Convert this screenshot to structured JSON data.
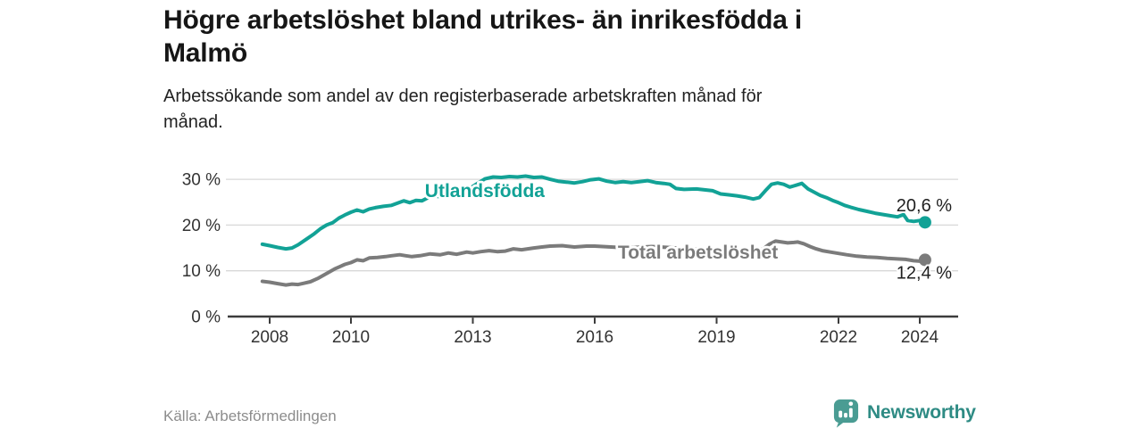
{
  "header": {
    "title_line1": "Högre arbetslöshet bland utrikes- än inrikesfödda i",
    "title_line2": "Malmö",
    "subtitle_line1": "Arbetssökande som andel av den registerbaserade arbetskraften månad för",
    "subtitle_line2": "månad."
  },
  "footer": {
    "source": "Källa: Arbetsförmedlingen",
    "logo_text": "Newsworthy"
  },
  "colors": {
    "foreign_born": "#12a296",
    "total": "#7b7b7b",
    "grid": "#d8d8d8",
    "axis": "#3c3c3c",
    "tick_text": "#333333",
    "value_text": "#1f1f1f",
    "logo_icon": "#4a9c93",
    "logo_text": "#2e8b84"
  },
  "chart_data": {
    "type": "line",
    "unit": "%",
    "x_axis": {
      "ticks": [
        2008,
        2010,
        2013,
        2016,
        2019,
        2022,
        2024
      ],
      "range": [
        2007.82,
        2024.95
      ],
      "grid": false
    },
    "y_axis": {
      "ticks": [
        0,
        10,
        20,
        30
      ],
      "tick_labels": [
        "0 %",
        "10 %",
        "20 %",
        "30 %"
      ],
      "range": [
        0,
        31.8
      ],
      "grid": true
    },
    "legend_position": "inline-labels",
    "series": [
      {
        "name": "Utlandsfödda",
        "color_key": "foreign_born",
        "inline_label": {
          "text": "Utlandsfödda",
          "x_year": 2011.82,
          "value": 26.1
        },
        "end_label": "20,6 %",
        "end_value": 20.6,
        "points": [
          [
            2007.82,
            15.8
          ],
          [
            2008.0,
            15.5
          ],
          [
            2008.2,
            15.1
          ],
          [
            2008.4,
            14.8
          ],
          [
            2008.55,
            15.0
          ],
          [
            2008.7,
            15.7
          ],
          [
            2008.9,
            16.9
          ],
          [
            2009.1,
            18.1
          ],
          [
            2009.25,
            19.2
          ],
          [
            2009.4,
            20.0
          ],
          [
            2009.55,
            20.5
          ],
          [
            2009.7,
            21.5
          ],
          [
            2009.85,
            22.2
          ],
          [
            2010.0,
            22.8
          ],
          [
            2010.15,
            23.3
          ],
          [
            2010.3,
            22.9
          ],
          [
            2010.45,
            23.5
          ],
          [
            2010.6,
            23.8
          ],
          [
            2010.8,
            24.1
          ],
          [
            2011.0,
            24.3
          ],
          [
            2011.15,
            24.8
          ],
          [
            2011.3,
            25.3
          ],
          [
            2011.45,
            24.9
          ],
          [
            2011.6,
            25.4
          ],
          [
            2011.75,
            25.3
          ],
          [
            2011.9,
            26.0
          ],
          [
            2012.05,
            26.4
          ],
          [
            2012.2,
            26.2
          ],
          [
            2012.4,
            26.7
          ],
          [
            2012.55,
            26.4
          ],
          [
            2012.7,
            27.2
          ],
          [
            2012.9,
            27.9
          ],
          [
            2013.1,
            29.0
          ],
          [
            2013.3,
            30.1
          ],
          [
            2013.5,
            30.5
          ],
          [
            2013.7,
            30.4
          ],
          [
            2013.9,
            30.6
          ],
          [
            2014.1,
            30.5
          ],
          [
            2014.3,
            30.7
          ],
          [
            2014.5,
            30.4
          ],
          [
            2014.7,
            30.5
          ],
          [
            2014.9,
            30.0
          ],
          [
            2015.1,
            29.6
          ],
          [
            2015.3,
            29.4
          ],
          [
            2015.5,
            29.2
          ],
          [
            2015.7,
            29.5
          ],
          [
            2015.9,
            29.9
          ],
          [
            2016.1,
            30.1
          ],
          [
            2016.3,
            29.6
          ],
          [
            2016.5,
            29.3
          ],
          [
            2016.7,
            29.5
          ],
          [
            2016.9,
            29.3
          ],
          [
            2017.1,
            29.5
          ],
          [
            2017.3,
            29.7
          ],
          [
            2017.5,
            29.3
          ],
          [
            2017.7,
            29.1
          ],
          [
            2017.85,
            28.9
          ],
          [
            2018.0,
            28.0
          ],
          [
            2018.2,
            27.8
          ],
          [
            2018.5,
            27.9
          ],
          [
            2018.7,
            27.7
          ],
          [
            2018.9,
            27.5
          ],
          [
            2019.1,
            26.8
          ],
          [
            2019.3,
            26.6
          ],
          [
            2019.5,
            26.4
          ],
          [
            2019.7,
            26.1
          ],
          [
            2019.9,
            25.7
          ],
          [
            2020.05,
            26.0
          ],
          [
            2020.2,
            27.5
          ],
          [
            2020.35,
            28.9
          ],
          [
            2020.5,
            29.2
          ],
          [
            2020.65,
            28.9
          ],
          [
            2020.8,
            28.3
          ],
          [
            2020.95,
            28.7
          ],
          [
            2021.1,
            29.1
          ],
          [
            2021.25,
            27.9
          ],
          [
            2021.4,
            27.2
          ],
          [
            2021.55,
            26.5
          ],
          [
            2021.7,
            26.0
          ],
          [
            2021.85,
            25.4
          ],
          [
            2022.0,
            24.9
          ],
          [
            2022.15,
            24.3
          ],
          [
            2022.3,
            23.9
          ],
          [
            2022.5,
            23.4
          ],
          [
            2022.7,
            23.0
          ],
          [
            2022.9,
            22.6
          ],
          [
            2023.1,
            22.3
          ],
          [
            2023.3,
            22.0
          ],
          [
            2023.45,
            21.8
          ],
          [
            2023.6,
            22.3
          ],
          [
            2023.7,
            21.0
          ],
          [
            2023.85,
            20.8
          ],
          [
            2024.0,
            21.0
          ],
          [
            2024.13,
            20.6
          ]
        ]
      },
      {
        "name": "Total arbetslöshet",
        "color_key": "total",
        "inline_label": {
          "text": "Total arbetslöshet",
          "x_year": 2016.57,
          "value": 12.65
        },
        "end_label": "12,4 %",
        "end_value": 12.4,
        "points": [
          [
            2007.82,
            7.7
          ],
          [
            2008.0,
            7.5
          ],
          [
            2008.2,
            7.2
          ],
          [
            2008.4,
            6.9
          ],
          [
            2008.55,
            7.1
          ],
          [
            2008.7,
            7.0
          ],
          [
            2008.85,
            7.3
          ],
          [
            2009.0,
            7.6
          ],
          [
            2009.2,
            8.4
          ],
          [
            2009.4,
            9.4
          ],
          [
            2009.6,
            10.4
          ],
          [
            2009.85,
            11.4
          ],
          [
            2010.0,
            11.8
          ],
          [
            2010.15,
            12.4
          ],
          [
            2010.3,
            12.2
          ],
          [
            2010.45,
            12.8
          ],
          [
            2010.65,
            12.9
          ],
          [
            2010.85,
            13.1
          ],
          [
            2011.0,
            13.3
          ],
          [
            2011.2,
            13.5
          ],
          [
            2011.35,
            13.3
          ],
          [
            2011.5,
            13.1
          ],
          [
            2011.7,
            13.3
          ],
          [
            2011.95,
            13.7
          ],
          [
            2012.2,
            13.5
          ],
          [
            2012.4,
            13.9
          ],
          [
            2012.6,
            13.6
          ],
          [
            2012.85,
            14.1
          ],
          [
            2013.0,
            13.9
          ],
          [
            2013.2,
            14.2
          ],
          [
            2013.4,
            14.4
          ],
          [
            2013.6,
            14.2
          ],
          [
            2013.8,
            14.3
          ],
          [
            2014.0,
            14.8
          ],
          [
            2014.2,
            14.6
          ],
          [
            2014.5,
            15.0
          ],
          [
            2014.7,
            15.2
          ],
          [
            2014.9,
            15.4
          ],
          [
            2015.2,
            15.5
          ],
          [
            2015.5,
            15.2
          ],
          [
            2015.8,
            15.4
          ],
          [
            2016.0,
            15.4
          ],
          [
            2016.2,
            15.3
          ],
          [
            2016.4,
            15.2
          ],
          [
            2016.6,
            15.1
          ],
          [
            2016.8,
            15.0
          ],
          [
            2017.0,
            15.1
          ],
          [
            2017.2,
            15.2
          ],
          [
            2017.4,
            15.3
          ],
          [
            2017.6,
            15.2
          ],
          [
            2017.8,
            15.1
          ],
          [
            2018.0,
            15.0
          ],
          [
            2018.25,
            14.9
          ],
          [
            2018.5,
            14.7
          ],
          [
            2018.75,
            14.6
          ],
          [
            2019.0,
            14.4
          ],
          [
            2019.25,
            14.2
          ],
          [
            2019.5,
            14.1
          ],
          [
            2019.75,
            14.0
          ],
          [
            2019.95,
            14.1
          ],
          [
            2020.15,
            14.8
          ],
          [
            2020.3,
            15.8
          ],
          [
            2020.45,
            16.5
          ],
          [
            2020.6,
            16.3
          ],
          [
            2020.75,
            16.1
          ],
          [
            2020.9,
            16.2
          ],
          [
            2021.0,
            16.3
          ],
          [
            2021.15,
            15.9
          ],
          [
            2021.3,
            15.3
          ],
          [
            2021.45,
            14.8
          ],
          [
            2021.6,
            14.4
          ],
          [
            2021.8,
            14.1
          ],
          [
            2022.0,
            13.8
          ],
          [
            2022.2,
            13.5
          ],
          [
            2022.45,
            13.2
          ],
          [
            2022.7,
            13.0
          ],
          [
            2022.95,
            12.9
          ],
          [
            2023.2,
            12.7
          ],
          [
            2023.45,
            12.6
          ],
          [
            2023.65,
            12.5
          ],
          [
            2023.85,
            12.2
          ],
          [
            2024.0,
            12.1
          ],
          [
            2024.13,
            12.4
          ]
        ]
      }
    ]
  }
}
